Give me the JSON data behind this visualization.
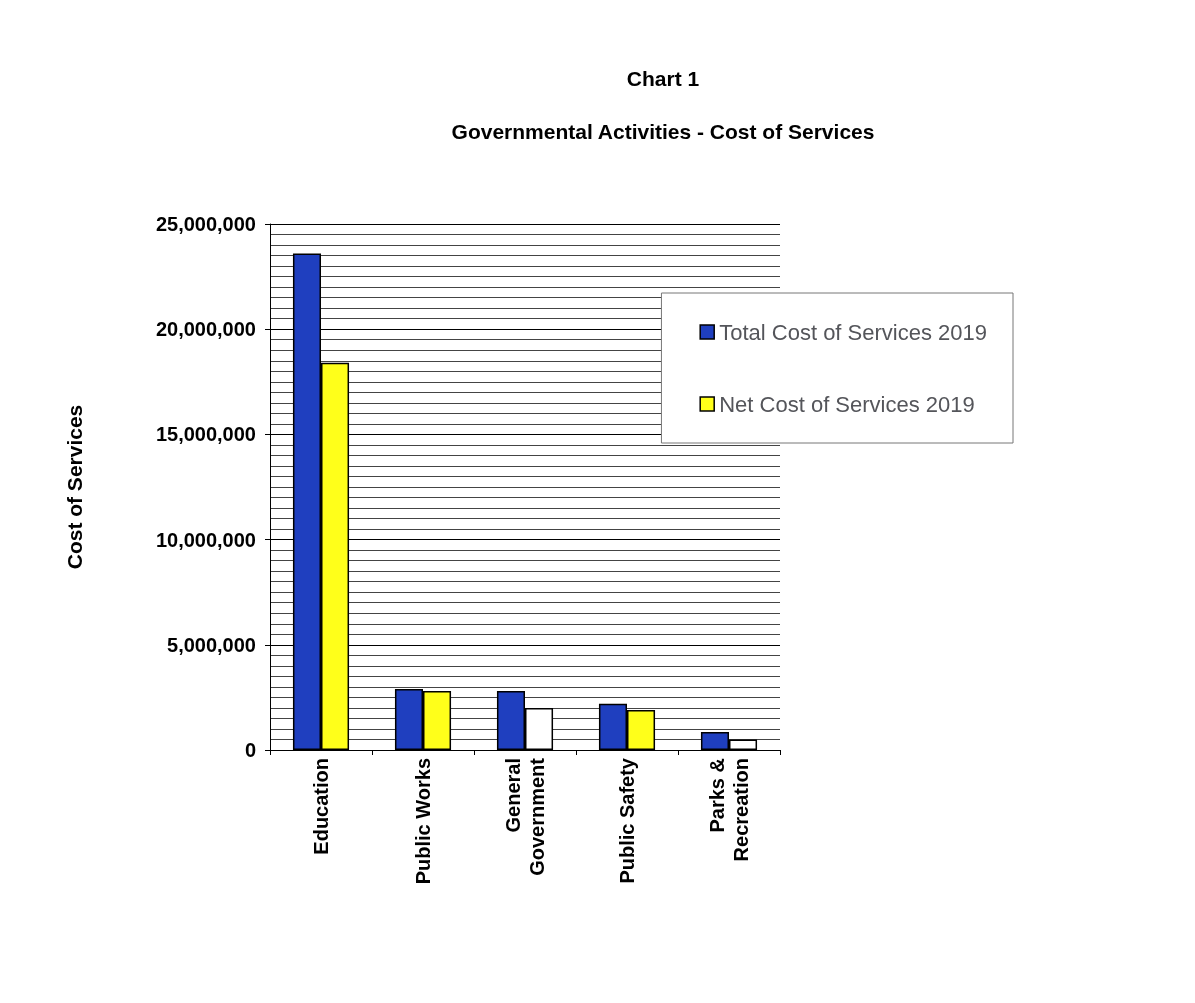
{
  "chart_data": {
    "type": "bar",
    "title": "Chart 1",
    "subtitle": "Governmental Activities - Cost of Services",
    "ylabel": "Cost of Services",
    "categories": [
      "Education",
      "Public Works",
      "General\nGovernment",
      "Public Safety",
      "Parks &\nRecreation"
    ],
    "series": [
      {
        "name": "Total Cost of Services 2019",
        "color": "#1f3fbf",
        "values": [
          23600000,
          2900000,
          2800000,
          2200000,
          850000
        ]
      },
      {
        "name": "Net Cost of Services 2019",
        "color": "#ffff1a",
        "colors": [
          "#ffff1a",
          "#ffff1a",
          "#ffffff",
          "#ffff1a",
          "#ffffff"
        ],
        "values": [
          18400000,
          2800000,
          2000000,
          1900000,
          500000
        ]
      }
    ],
    "ylim": [
      0,
      25000000
    ],
    "yticks": [
      0,
      {
        "value": 5000000,
        "label": "5,000,000"
      },
      {
        "value": 10000000,
        "label": "10,000,000"
      },
      {
        "value": 15000000,
        "label": "15,000,000"
      },
      {
        "value": 20000000,
        "label": "20,000,000"
      },
      {
        "value": 25000000,
        "label": "25,000,000"
      }
    ],
    "grid": true,
    "legend": "top right"
  }
}
